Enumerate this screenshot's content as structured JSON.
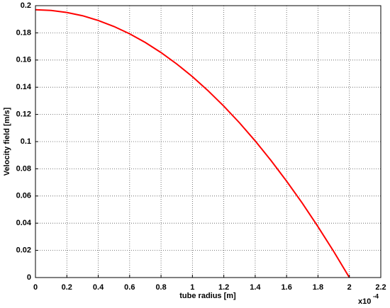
{
  "chart_data": {
    "type": "line",
    "xlabel": "tube radius [m]",
    "ylabel": "Velocity field [m/s]",
    "x_scale_label": {
      "base": "x10",
      "exponent": "-4"
    },
    "x": [
      0,
      0.1,
      0.2,
      0.3,
      0.4,
      0.5,
      0.6,
      0.7,
      0.8,
      0.9,
      1.0,
      1.1,
      1.2,
      1.3,
      1.4,
      1.5,
      1.6,
      1.7,
      1.8,
      1.9,
      2.0
    ],
    "values": [
      0.197,
      0.1965,
      0.195,
      0.1926,
      0.1891,
      0.1847,
      0.1793,
      0.1729,
      0.1655,
      0.1571,
      0.1478,
      0.1374,
      0.1261,
      0.1138,
      0.1005,
      0.0862,
      0.0709,
      0.0547,
      0.0374,
      0.0192,
      0
    ],
    "color": "#ff0000",
    "xlim": [
      0,
      2.2
    ],
    "xticks": [
      0,
      0.2,
      0.4,
      0.6,
      0.8,
      1,
      1.2,
      1.4,
      1.6,
      1.8,
      2,
      2.2
    ],
    "ylim": [
      0,
      0.2
    ],
    "yticks": [
      0,
      0.02,
      0.04,
      0.06,
      0.08,
      0.1,
      0.12,
      0.14,
      0.16,
      0.18,
      0.2
    ],
    "grid": true
  }
}
